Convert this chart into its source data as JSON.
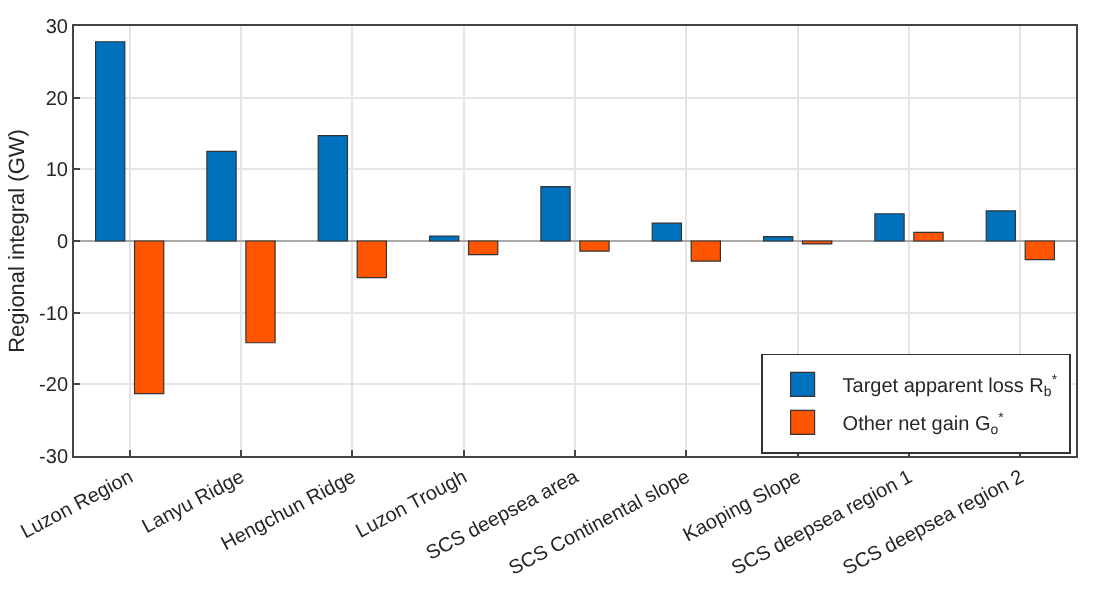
{
  "chart_data": {
    "type": "bar",
    "ylabel": "Regional integral (GW)",
    "categories": [
      "Luzon Region",
      "Lanyu Ridge",
      "Hengchun Ridge",
      "Luzon Trough",
      "SCS deepsea area",
      "SCS Continental slope",
      "Kaoping Slope",
      "SCS deepsea region 1",
      "SCS deepsea region 2"
    ],
    "series": [
      {
        "name": "Target apparent loss R$_{b}$$^{*}$",
        "color": "#0072bd",
        "values": [
          27.8,
          12.5,
          14.7,
          0.7,
          7.6,
          2.5,
          0.6,
          3.8,
          4.2
        ]
      },
      {
        "name": "Other net gain G$_{o}$$^{*}$",
        "color": "#ff5500",
        "values": [
          -21.3,
          -14.2,
          -5.1,
          -1.9,
          -1.4,
          -2.8,
          -0.4,
          1.2,
          -2.6
        ]
      }
    ],
    "ylim": [
      -30,
      30
    ],
    "yticks": [
      -30,
      -20,
      -10,
      0,
      10,
      20,
      30
    ],
    "grid": true,
    "legend": "bottom right"
  }
}
